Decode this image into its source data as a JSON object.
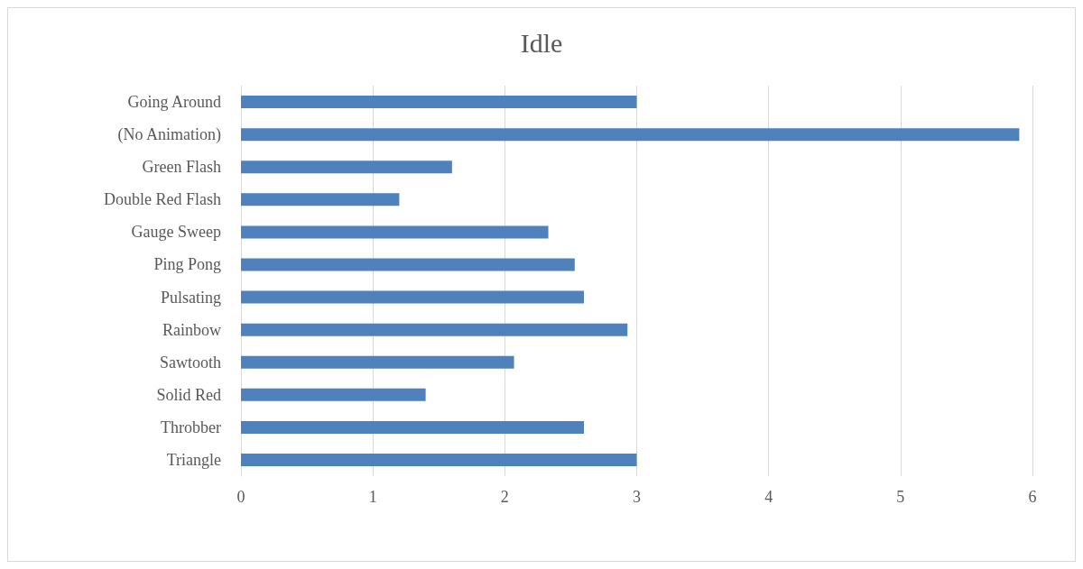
{
  "chart_data": {
    "type": "bar",
    "title": "Idle",
    "orientation": "horizontal",
    "categories": [
      "Going Around",
      "(No Animation)",
      "Green Flash",
      "Double Red Flash",
      "Gauge Sweep",
      "Ping Pong",
      "Pulsating",
      "Rainbow",
      "Sawtooth",
      "Solid Red",
      "Throbber",
      "Triangle"
    ],
    "values": [
      3.0,
      5.9,
      1.6,
      1.2,
      2.33,
      2.53,
      2.6,
      2.93,
      2.07,
      1.4,
      2.6,
      3.0
    ],
    "color": "#4f81bd",
    "xlim": [
      0,
      6
    ],
    "xticks": [
      0,
      1,
      2,
      3,
      4,
      5,
      6
    ],
    "grid": "x"
  }
}
